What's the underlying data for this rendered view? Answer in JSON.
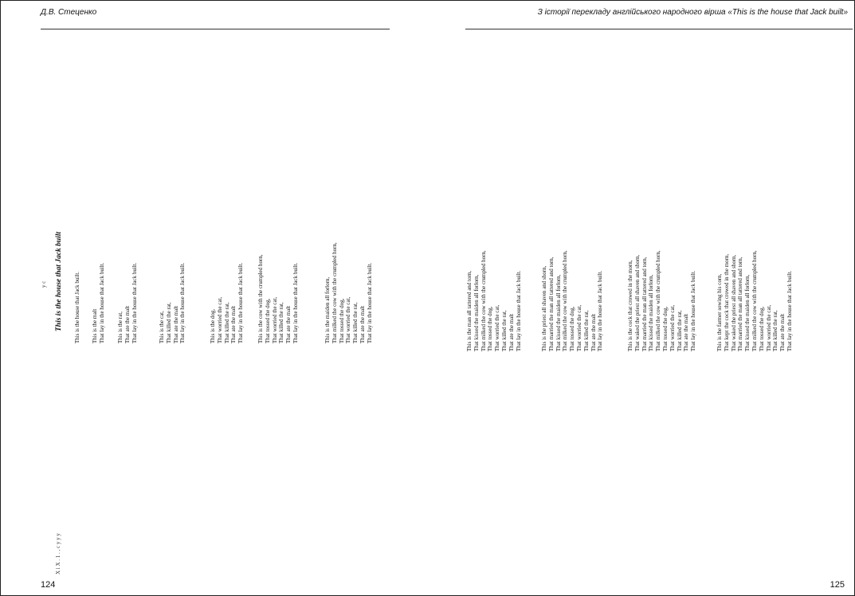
{
  "header": {
    "left": "Д.В. Стеценко",
    "right": "З історії перекладу англійського народного вірша «This is the house that Jack built»"
  },
  "page_numbers": {
    "left": "124",
    "right": "125"
  },
  "left_page": {
    "title": "This is the house that Jack built",
    "stanzas": [
      [
        "This is the house that Jack built."
      ],
      [
        "This is the malt",
        "That lay in the house that Jack built."
      ],
      [
        "This is the rat,",
        "That ate the malt",
        "That lay in the house that Jack built."
      ],
      [
        "This is the cat,",
        "That killed the rat,",
        "That ate the malt",
        "That lay in the house that Jack built."
      ],
      [
        "This is the dog,",
        "That worried the cat,",
        "That killed the rat,",
        "That ate the malt",
        "That lay in the house that Jack built."
      ],
      [
        "This is the cow with the crumpled horn,",
        "That tossed the dog,",
        "That worried the cat,",
        "That killed the rat,",
        "That ate the malt",
        "That lay in the house that Jack built."
      ],
      [
        "This is the maiden all forlorn,",
        "That milked the cow with the crumpled horn,",
        "That tossed the dog,",
        "That worried the cat,",
        "That killed the rat,",
        "That ate the malt",
        "That lay in the house that Jack built."
      ]
    ]
  },
  "right_page": {
    "stanzas": [
      [
        "This is the man all tattered and torn,",
        "That kissed the maiden all forlorn,",
        "That milked the cow with the crumpled horn,",
        "That tossed the dog,",
        "That worried the cat,",
        "That killed the rat,",
        "That ate the malt",
        "That lay in the house that Jack built."
      ],
      [
        "This is the priest all shaven and shorn,",
        "That married the man all tattered and torn,",
        "That kissed the maiden all forlorn,",
        "That milked the cow with the crumpled horn,",
        "That tossed the dog,",
        "That worried the cat,",
        "That killed the rat,",
        "That ate the malt",
        "That lay in the house that Jack built."
      ],
      [
        "This is the cock that crowed in the morn,",
        "That waked the priest all shaven and shorn,",
        "That married the man all tattered and torn,",
        "That kissed the maiden all forlorn,",
        "That milked the cow with the crumpled horn,",
        "That tossed the dog,",
        "That worried the cat,",
        "That killed the rat,",
        "That ate the malt",
        "That lay in the house that Jack built."
      ],
      [
        "This is the farmer sowing his corn,",
        "That kept the cock that crowed in the morn,",
        "That waked the priest all shaven and shorn,",
        "That married the man all tattered and torn,",
        "That kissed the maiden all forlorn,",
        "That milked the cow with the crumpled horn,",
        "That tossed the dog,",
        "That worried the cat,",
        "That killed the rat,",
        "That ate the malt",
        "That lay in the house that Jack built."
      ]
    ]
  },
  "transliteration_marks": {
    "left_header_row": "X  i  X . 1 .  , c  y   y y",
    "left_title_marks": "y  c"
  }
}
